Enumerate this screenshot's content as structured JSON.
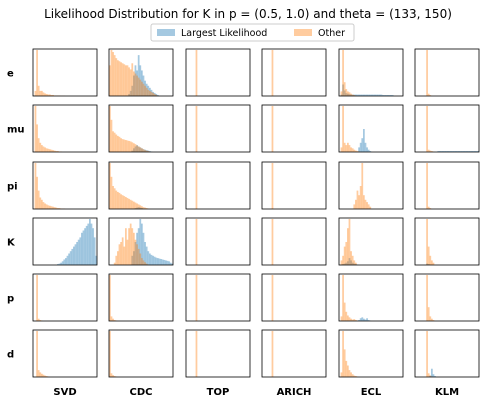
{
  "chart_data": {
    "type": "histogram-grid",
    "title": "Likelihood Distribution for K in p = (0.5, 1.0) and theta = (133, 150)",
    "legend": {
      "placement": "top-center",
      "entries": [
        {
          "label": "Largest Likelihood",
          "color": "#1f77b4"
        },
        {
          "label": "Other",
          "color": "#ff7f0e"
        }
      ]
    },
    "rows": [
      "e",
      "mu",
      "pi",
      "K",
      "p",
      "d"
    ],
    "columns": [
      "SVD",
      "CDC",
      "TOP",
      "ARICH",
      "ECL",
      "KLM"
    ],
    "bins": 40,
    "bar_alpha": 0.4,
    "panels": {
      "e": {
        "SVD": {
          "other": [
            0,
            1,
            9,
            2,
            1,
            1,
            0.7,
            0.5,
            0.4,
            0.3,
            0.3,
            0.2,
            0.2,
            0.1,
            0.1,
            0.1,
            0.1,
            0.05,
            0.05,
            0.05
          ],
          "largest": [
            0.1,
            0.1
          ]
        },
        "CDC": {
          "other": [
            3,
            4.5,
            4.3,
            4,
            3.7,
            3.5,
            3.4,
            3.3,
            3.2,
            3.1,
            3,
            3,
            2.8,
            2.6,
            3.2,
            2.4,
            2.2,
            2,
            1.8,
            1.6,
            1.4,
            1.2,
            1,
            0.8,
            0.6,
            0.5,
            0.4,
            0.3,
            0.2,
            0.1
          ],
          "largest": [
            0,
            0,
            0,
            0,
            0,
            0,
            0,
            0,
            0,
            0,
            0,
            0,
            0.2,
            0.5,
            1,
            2,
            3,
            2.5,
            4,
            3,
            2.5,
            2,
            1.5,
            1.2,
            1,
            0.8,
            0.6,
            0.4,
            0.3,
            0.2,
            0.1
          ]
        },
        "TOP": {
          "other": [
            0,
            0,
            0,
            0,
            0,
            0,
            10
          ],
          "largest": []
        },
        "ARICH": {
          "other": [
            0,
            0,
            0,
            0,
            0,
            0,
            10
          ],
          "largest": []
        },
        "ECL": {
          "other": [
            0,
            1,
            10,
            3,
            1.5,
            1,
            0.8,
            0.5,
            0.3,
            0.2,
            0.1
          ],
          "largest": [
            0,
            0.3,
            2.5,
            1.2,
            0.6,
            0.5,
            0.4,
            0.3,
            0.3,
            0.3,
            0.3,
            0.3,
            0.3,
            0.3,
            0.3,
            0.3,
            0.3,
            0.3,
            0.3,
            0.3,
            0.3,
            0.3,
            0.3,
            0.3,
            0.3,
            0.3,
            0.3,
            0.2,
            0.2,
            0.2,
            0.2,
            0.2,
            0.2,
            0.2
          ]
        },
        "KLM": {
          "other": [
            0,
            0,
            0,
            0,
            0,
            0,
            0,
            10,
            0.5,
            0.2
          ],
          "largest": []
        }
      },
      "mu": {
        "SVD": {
          "other": [
            0,
            10,
            6,
            3,
            2,
            1.5,
            1.2,
            1,
            0.8,
            0.7,
            0.6,
            0.5,
            0.4,
            0.3,
            0.2,
            0.2,
            0.1,
            0.1
          ],
          "largest": []
        },
        "CDC": {
          "other": [
            10,
            7,
            4.5,
            4.2,
            3.8,
            3.5,
            3.3,
            3,
            2.8,
            2.7,
            2.6,
            2.5,
            2.4,
            2.3,
            2.1,
            1.9,
            1.7,
            1.4,
            1.2,
            1,
            0.8,
            0.6,
            0.4,
            0.3,
            0.2,
            0.1
          ],
          "largest": [
            0,
            0,
            0,
            0,
            0,
            0,
            0,
            0,
            0,
            0,
            0,
            0,
            0,
            0,
            0.3,
            0.8,
            1.2,
            1.5,
            1.2,
            1,
            0.8,
            0.6,
            0.5,
            0.4,
            0.3,
            0.2,
            0.1
          ]
        },
        "TOP": {
          "other": [
            0,
            0,
            0,
            0,
            0,
            0,
            10
          ],
          "largest": []
        },
        "ARICH": {
          "other": [
            0,
            0,
            0,
            0,
            0,
            0,
            10
          ],
          "largest": []
        },
        "ECL": {
          "other": [
            0,
            1,
            10,
            2,
            1.5,
            2,
            1.5,
            1,
            0.8,
            0.5,
            0.3,
            0.2,
            0.1
          ],
          "largest": [
            0,
            0,
            0,
            0,
            0,
            0,
            0,
            0,
            0,
            0,
            0,
            0,
            1,
            2,
            3,
            5,
            2,
            1,
            0.5,
            0.2
          ]
        },
        "KLM": {
          "other": [
            0,
            0,
            0,
            0,
            0,
            0,
            0,
            10,
            0.5,
            0.3,
            0.2,
            0.1
          ],
          "largest": [
            0,
            0,
            0,
            0,
            0,
            0,
            0,
            0,
            0,
            0,
            0,
            0,
            0,
            0,
            0.2,
            0.2,
            0.2,
            0.2,
            0.2,
            0.2,
            0.2,
            0.2,
            0.2,
            0.2,
            0.2,
            0.2,
            0.2,
            0.2,
            0.2,
            0.2,
            0.2,
            0.2,
            0.2,
            0.2,
            0.2,
            0.2,
            0.2,
            0.2,
            0.2,
            0.2
          ]
        }
      },
      "pi": {
        "SVD": {
          "other": [
            0,
            10,
            7,
            4,
            2.5,
            2,
            1.5,
            1.2,
            1,
            0.8,
            0.7,
            0.6,
            0.5,
            0.4,
            0.3,
            0.2,
            0.2,
            0.1,
            0.1,
            0.1
          ],
          "largest": []
        },
        "CDC": {
          "other": [
            10,
            7,
            5,
            4.5,
            4,
            3.7,
            3.5,
            3.2,
            3,
            2.8,
            2.6,
            2.4,
            2.2,
            2,
            1.8,
            1.6,
            1.4,
            1.2,
            1,
            0.8,
            0.6,
            0.4,
            0.3,
            0.2,
            0.1
          ],
          "largest": [
            0,
            0,
            0,
            0,
            0,
            0,
            0,
            0,
            0,
            0,
            0,
            0,
            0,
            0,
            0,
            0,
            0.2,
            0.3,
            0.4,
            0.3,
            0.2,
            0.1
          ]
        },
        "TOP": {
          "other": [
            0,
            0,
            0,
            0,
            0,
            0,
            10
          ],
          "largest": []
        },
        "ARICH": {
          "other": [
            0,
            0,
            0,
            0,
            0,
            0,
            10
          ],
          "largest": []
        },
        "ECL": {
          "other": [
            0,
            0,
            0,
            0,
            0,
            0,
            0,
            0,
            0,
            1,
            2,
            4,
            3,
            5,
            10,
            3,
            2,
            1.5,
            1,
            0.5
          ],
          "largest": []
        },
        "KLM": {
          "other": [
            0,
            0,
            0,
            0,
            0,
            0,
            0,
            10,
            0.5,
            0.2
          ],
          "largest": []
        }
      },
      "K": {
        "SVD": {
          "other": [],
          "largest": [
            0,
            0,
            0,
            0,
            0,
            0,
            0,
            0,
            0,
            0,
            0,
            0,
            0,
            0,
            0,
            0.2,
            0.3,
            0.5,
            0.8,
            1.2,
            1.5,
            2,
            2.5,
            3,
            3.5,
            4,
            4.5,
            5,
            5.5,
            6,
            7,
            7.5,
            8,
            8.5,
            9,
            10,
            9,
            8,
            6,
            2
          ]
        },
        "CDC": {
          "other": [
            0,
            0,
            0,
            0.5,
            2,
            3,
            4.5,
            5,
            6,
            4,
            8,
            5.5,
            8,
            9,
            8,
            7,
            5.5,
            4.5,
            3.5,
            2.5,
            1.5,
            1,
            0.6,
            0.3,
            0.1
          ],
          "largest": [
            0,
            0,
            0,
            0,
            0,
            0,
            0,
            0,
            0,
            0,
            0,
            0,
            0,
            0,
            2,
            3,
            5,
            7,
            8,
            10,
            9,
            7,
            5,
            4,
            3,
            2.5,
            2.2,
            2,
            1.8,
            1.6,
            1.5,
            1.4,
            1.3,
            1.2,
            1.1,
            1,
            0.9,
            0.8,
            0.5,
            0.3
          ]
        },
        "TOP": {
          "other": [
            0,
            0,
            0,
            0,
            0,
            0,
            10
          ],
          "largest": []
        },
        "ARICH": {
          "other": [
            0,
            0,
            0,
            0,
            0,
            0,
            10
          ],
          "largest": []
        },
        "ECL": {
          "other": [
            0,
            1,
            2,
            4,
            5,
            8,
            10,
            3,
            2,
            1,
            0.5
          ],
          "largest": [
            0,
            0.1,
            0.2,
            0.3,
            0.5,
            0.8,
            1.5,
            1,
            0.5,
            0.3,
            0.2,
            0.1
          ]
        },
        "KLM": {
          "other": [
            0,
            0,
            0,
            0,
            0,
            0,
            0,
            10,
            4,
            2,
            1,
            0.5
          ],
          "largest": [
            0,
            0,
            0,
            0,
            0,
            0,
            0,
            0.3,
            0.2,
            0.1
          ]
        }
      },
      "p": {
        "SVD": {
          "other": [
            0,
            0,
            10,
            0.5,
            0.2,
            0.1
          ],
          "largest": []
        },
        "CDC": {
          "other": [
            10,
            1,
            0.5,
            0.2,
            0.1
          ],
          "largest": []
        },
        "TOP": {
          "other": [
            0,
            0,
            0,
            0,
            0,
            0,
            10
          ],
          "largest": []
        },
        "ARICH": {
          "other": [
            0,
            0,
            0,
            0,
            0,
            0,
            10
          ],
          "largest": []
        },
        "ECL": {
          "other": [
            0,
            1,
            10,
            4,
            2,
            1.2,
            0.8,
            0.5,
            0.3,
            0.4,
            0.2,
            0.1
          ],
          "largest": [
            0,
            0,
            0,
            0,
            0,
            0,
            0,
            0,
            0,
            0,
            0,
            0.1,
            0.2,
            0.6,
            0.8,
            0.5,
            0.3,
            0.6,
            0.2,
            0.1
          ]
        },
        "KLM": {
          "other": [
            0,
            0,
            0,
            0,
            0,
            0,
            0,
            10,
            3,
            1,
            0.5,
            0.2
          ],
          "largest": []
        }
      },
      "d": {
        "SVD": {
          "other": [
            0,
            0,
            10,
            1.5,
            1,
            0.7,
            0.5,
            0.3,
            0.2,
            0.1
          ],
          "largest": []
        },
        "CDC": {
          "other": [
            10,
            0.8,
            0.4,
            0.2,
            0.1
          ],
          "largest": []
        },
        "TOP": {
          "other": [
            0,
            0,
            0,
            0,
            0,
            0,
            10
          ],
          "largest": []
        },
        "ARICH": {
          "other": [
            0,
            0,
            0,
            0,
            0,
            0,
            10
          ],
          "largest": []
        },
        "ECL": {
          "other": [
            0,
            1,
            10,
            6,
            3.5,
            2.5,
            1.5,
            1,
            0.6,
            0.3,
            0.2,
            0.1
          ],
          "largest": []
        },
        "KLM": {
          "other": [
            0,
            0,
            0,
            0,
            0,
            0,
            0,
            10,
            0.8,
            0.3,
            0.1
          ],
          "largest": [
            0,
            0,
            0,
            0,
            0,
            0,
            0,
            0,
            0,
            0.3,
            1.8,
            0.6,
            0.2
          ]
        }
      }
    }
  }
}
